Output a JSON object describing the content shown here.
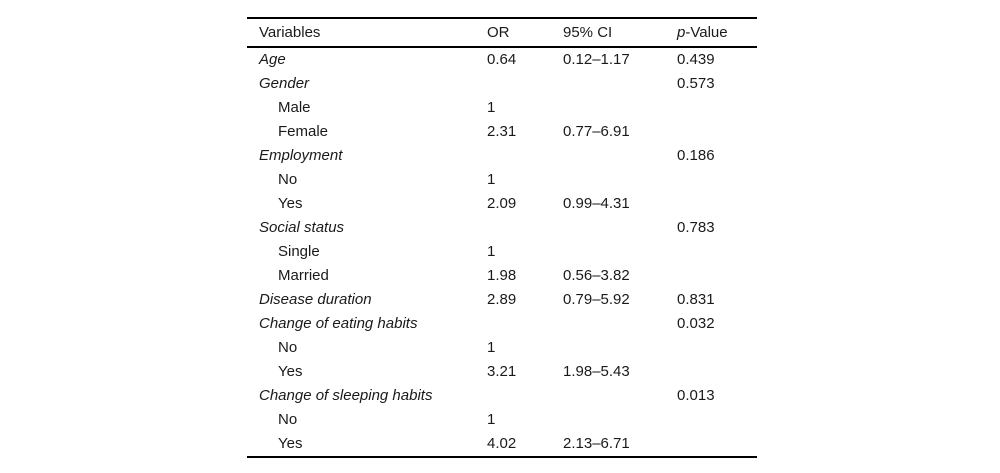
{
  "header": {
    "variables": "Variables",
    "or": "OR",
    "ci": "95% CI",
    "p_prefix": "p",
    "p_suffix": "-Value"
  },
  "rows": [
    {
      "label": "Age",
      "type": "group",
      "or": "0.64",
      "ci": "0.12–1.17",
      "p": "0.439"
    },
    {
      "label": "Gender",
      "type": "group",
      "or": "",
      "ci": "",
      "p": "0.573"
    },
    {
      "label": "Male",
      "type": "sub",
      "or": "1",
      "ci": "",
      "p": ""
    },
    {
      "label": "Female",
      "type": "sub",
      "or": "2.31",
      "ci": "0.77–6.91",
      "p": ""
    },
    {
      "label": "Employment",
      "type": "group",
      "or": "",
      "ci": "",
      "p": "0.186"
    },
    {
      "label": "No",
      "type": "sub",
      "or": "1",
      "ci": "",
      "p": ""
    },
    {
      "label": "Yes",
      "type": "sub",
      "or": "2.09",
      "ci": "0.99–4.31",
      "p": ""
    },
    {
      "label": "Social status",
      "type": "group",
      "or": "",
      "ci": "",
      "p": "0.783"
    },
    {
      "label": "Single",
      "type": "sub",
      "or": "1",
      "ci": "",
      "p": ""
    },
    {
      "label": "Married",
      "type": "sub",
      "or": "1.98",
      "ci": "0.56–3.82",
      "p": ""
    },
    {
      "label": "Disease duration",
      "type": "group",
      "or": "2.89",
      "ci": "0.79–5.92",
      "p": "0.831"
    },
    {
      "label": "Change of eating habits",
      "type": "group",
      "or": "",
      "ci": "",
      "p": "0.032"
    },
    {
      "label": "No",
      "type": "sub",
      "or": "1",
      "ci": "",
      "p": ""
    },
    {
      "label": "Yes",
      "type": "sub",
      "or": "3.21",
      "ci": "1.98–5.43",
      "p": ""
    },
    {
      "label": "Change of sleeping habits",
      "type": "group",
      "or": "",
      "ci": "",
      "p": "0.013"
    },
    {
      "label": "No",
      "type": "sub",
      "or": "1",
      "ci": "",
      "p": ""
    },
    {
      "label": "Yes",
      "type": "sub",
      "or": "4.02",
      "ci": "2.13–6.71",
      "p": ""
    }
  ]
}
